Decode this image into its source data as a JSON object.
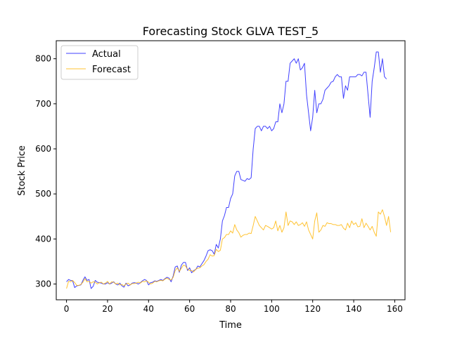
{
  "chart_data": {
    "type": "line",
    "title": "Forecasting Stock GLVA TEST_5",
    "xlabel": "Time",
    "ylabel": "Stock Price",
    "xlim": [
      -5,
      165
    ],
    "ylim": [
      265,
      840
    ],
    "xticks": [
      0,
      20,
      40,
      60,
      80,
      100,
      120,
      140,
      160
    ],
    "yticks": [
      300,
      400,
      500,
      600,
      700,
      800
    ],
    "legend_position": "top-left",
    "grid": false,
    "series": [
      {
        "name": "Actual",
        "color": "#0000ff",
        "values": [
          305,
          310,
          308,
          307,
          292,
          296,
          297,
          298,
          308,
          316,
          308,
          310,
          290,
          295,
          308,
          304,
          303,
          302,
          300,
          300,
          303,
          300,
          302,
          305,
          300,
          298,
          302,
          296,
          293,
          302,
          296,
          298,
          302,
          303,
          302,
          300,
          303,
          307,
          310,
          308,
          298,
          303,
          304,
          307,
          306,
          308,
          310,
          308,
          312,
          315,
          313,
          305,
          318,
          338,
          340,
          326,
          342,
          348,
          348,
          330,
          336,
          325,
          330,
          332,
          340,
          338,
          345,
          352,
          362,
          374,
          376,
          374,
          366,
          388,
          380,
          400,
          440,
          452,
          470,
          470,
          490,
          500,
          540,
          550,
          550,
          532,
          530,
          528,
          534,
          532,
          536,
          600,
          645,
          650,
          650,
          640,
          650,
          650,
          645,
          650,
          640,
          645,
          660,
          660,
          700,
          680,
          700,
          750,
          750,
          790,
          795,
          800,
          790,
          800,
          775,
          780,
          790,
          720,
          680,
          640,
          670,
          730,
          680,
          700,
          700,
          710,
          730,
          735,
          740,
          748,
          750,
          760,
          765,
          760,
          760,
          712,
          740,
          730,
          760,
          760,
          760,
          760,
          765,
          765,
          762,
          770,
          770,
          720,
          670,
          750,
          780,
          815,
          815,
          770,
          800,
          760,
          755
        ]
      },
      {
        "name": "Forecast",
        "color": "#ffb400",
        "values": [
          290,
          306,
          305,
          308,
          303,
          297,
          297,
          299,
          304,
          312,
          305,
          306,
          302,
          305,
          304,
          300,
          303,
          304,
          300,
          302,
          306,
          300,
          305,
          304,
          300,
          302,
          298,
          299,
          296,
          300,
          302,
          298,
          301,
          301,
          302,
          304,
          302,
          306,
          305,
          307,
          304,
          300,
          302,
          306,
          305,
          307,
          308,
          307,
          311,
          313,
          310,
          309,
          315,
          330,
          336,
          328,
          335,
          342,
          340,
          333,
          330,
          330,
          327,
          333,
          335,
          336,
          340,
          343,
          350,
          355,
          365,
          362,
          363,
          377,
          372,
          375,
          400,
          403,
          410,
          410,
          418,
          413,
          432,
          420,
          414,
          404,
          408,
          410,
          410,
          413,
          412,
          430,
          450,
          440,
          430,
          425,
          420,
          430,
          428,
          425,
          422,
          425,
          440,
          418,
          430,
          415,
          425,
          460,
          430,
          440,
          438,
          432,
          438,
          430,
          432,
          436,
          428,
          438,
          420,
          410,
          400,
          440,
          458,
          415,
          420,
          430,
          428,
          436,
          434,
          434,
          432,
          432,
          430,
          430,
          432,
          424,
          420,
          435,
          425,
          440,
          432,
          436,
          427,
          428,
          445,
          425,
          435,
          428,
          420,
          428,
          415,
          406,
          460,
          455,
          465,
          450,
          430,
          450,
          415
        ]
      }
    ]
  }
}
